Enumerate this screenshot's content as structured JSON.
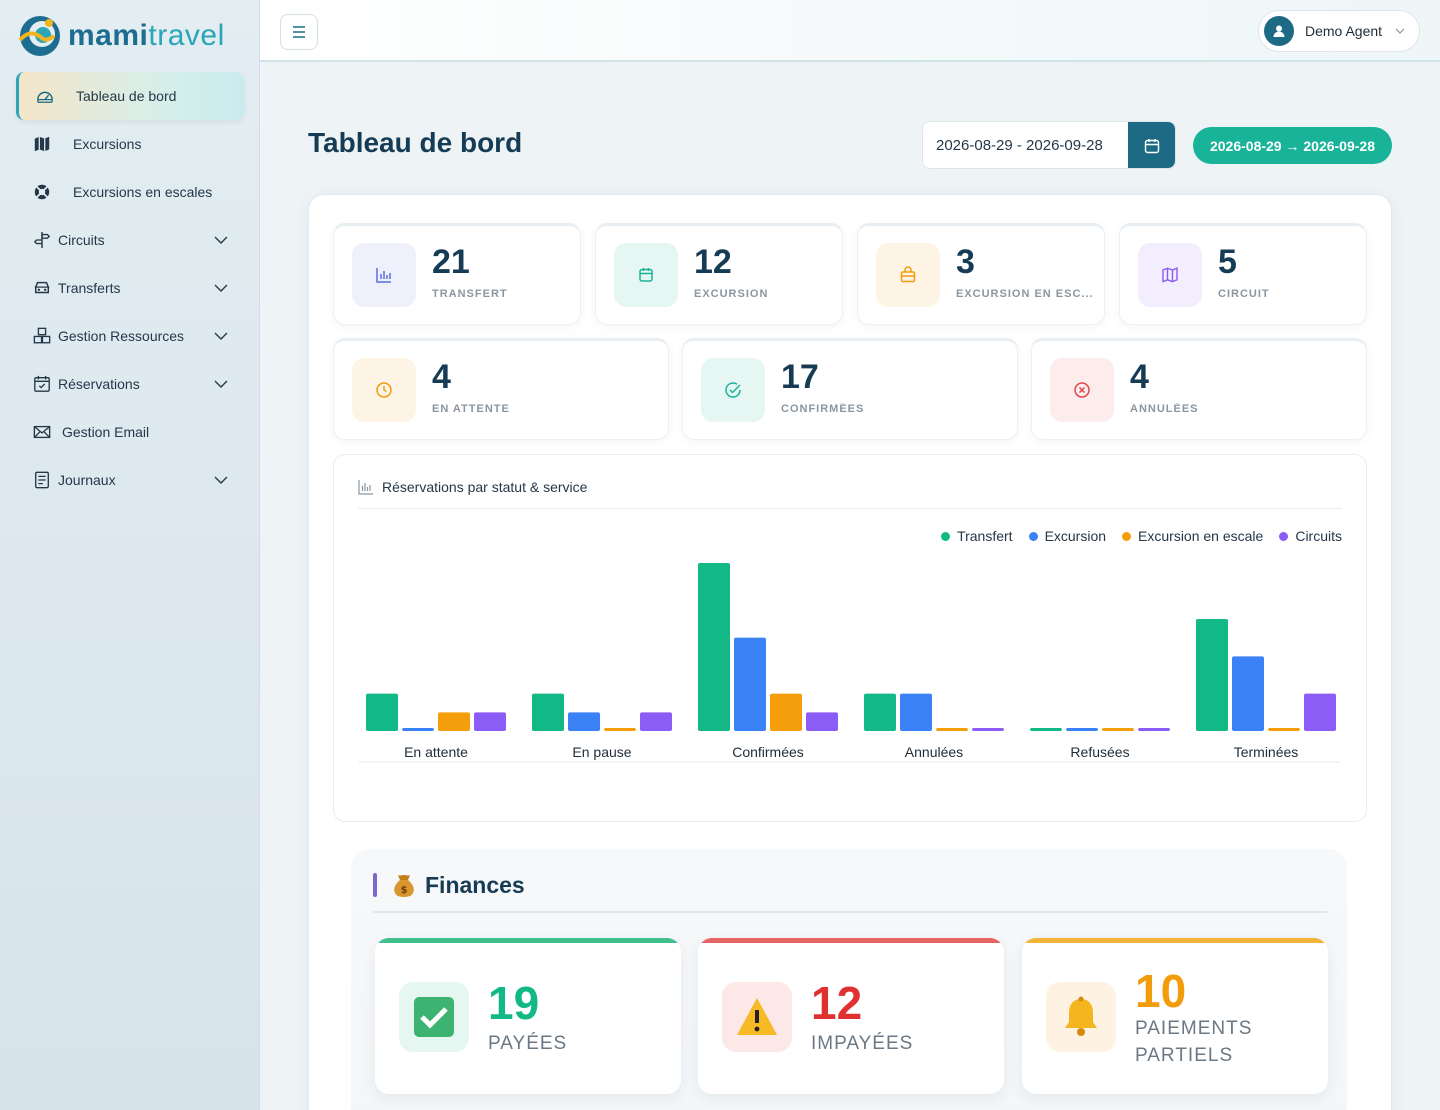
{
  "brand": {
    "name_part1": "mami",
    "name_part2": "travel"
  },
  "sidebar": {
    "items": [
      {
        "label": "Tableau de bord",
        "icon": "gauge-icon",
        "active": true
      },
      {
        "label": "Excursions",
        "icon": "map-icon"
      },
      {
        "label": "Excursions en escales",
        "icon": "lifebuoy-icon"
      },
      {
        "label": "Circuits",
        "icon": "signpost-icon",
        "expandable": true
      },
      {
        "label": "Transferts",
        "icon": "car-icon",
        "expandable": true
      },
      {
        "label": "Gestion Ressources",
        "icon": "boxes-icon",
        "expandable": true
      },
      {
        "label": "Réservations",
        "icon": "calendar-check-icon",
        "expandable": true
      },
      {
        "label": "Gestion Email",
        "icon": "envelope-icon"
      },
      {
        "label": "Journaux",
        "icon": "journal-icon",
        "expandable": true
      }
    ]
  },
  "topbar": {
    "user_name": "Demo Agent"
  },
  "header": {
    "title": "Tableau de bord",
    "date_input": "2026-08-29 - 2026-09-28",
    "date_badge": "2026-08-29 → 2026-09-28"
  },
  "stats_services": [
    {
      "value": "21",
      "label": "TRANSFERT",
      "icon": "bar-chart-icon",
      "color": "#5b6ee1",
      "bg": "#eef0fc"
    },
    {
      "value": "12",
      "label": "EXCURSION",
      "icon": "calendar-icon",
      "color": "#19b39a",
      "bg": "#e6f7f3"
    },
    {
      "value": "3",
      "label": "EXCURSION EN ESC...",
      "icon": "bag-icon",
      "color": "#f29b0b",
      "bg": "#fef4e6"
    },
    {
      "value": "5",
      "label": "CIRCUIT",
      "icon": "map-icon",
      "color": "#8a5cf0",
      "bg": "#f3eefd"
    }
  ],
  "stats_status": [
    {
      "value": "4",
      "label": "EN ATTENTE",
      "icon": "clock-icon",
      "color": "#f29b0b",
      "bg": "#fef4e6"
    },
    {
      "value": "17",
      "label": "CONFIRMÉES",
      "icon": "check-circle-icon",
      "color": "#19b39a",
      "bg": "#e6f7f3"
    },
    {
      "value": "4",
      "label": "ANNULÉES",
      "icon": "x-circle-icon",
      "color": "#e0474c",
      "bg": "#fdecec"
    }
  ],
  "chart": {
    "title": "Réservations par statut & service"
  },
  "chart_data": {
    "type": "bar",
    "categories": [
      "En attente",
      "En pause",
      "Confirmées",
      "Annulées",
      "Refusées",
      "Terminées"
    ],
    "series": [
      {
        "name": "Transfert",
        "color": "#12b886",
        "values": [
          2,
          2,
          9,
          2,
          0,
          6
        ]
      },
      {
        "name": "Excursion",
        "color": "#3b82f6",
        "values": [
          0,
          1,
          5,
          2,
          0,
          4
        ]
      },
      {
        "name": "Excursion en escale",
        "color": "#f59e0b",
        "values": [
          1,
          0,
          2,
          0,
          0,
          0
        ]
      },
      {
        "name": "Circuits",
        "color": "#8b5cf6",
        "values": [
          1,
          1,
          1,
          0,
          0,
          2
        ]
      }
    ],
    "ylim": [
      0,
      9
    ],
    "legend": "top-right",
    "grid": false
  },
  "finances": {
    "title": "Finances",
    "cards": [
      {
        "value": "19",
        "label": "PAYÉES",
        "icon": "check-box-icon",
        "color": "#12b886",
        "bg": "#e6f7f1"
      },
      {
        "value": "12",
        "label": "IMPAYÉES",
        "icon": "warning-icon",
        "color": "#e03131",
        "bg": "#fde8e8"
      },
      {
        "value": "10",
        "label": "PAIEMENTS PARTIELS",
        "label_line1": "PAIEMENTS",
        "label_line2": "PARTIELS",
        "icon": "bell-icon",
        "color": "#f29b0b",
        "bg": "#fef3e2"
      }
    ]
  }
}
